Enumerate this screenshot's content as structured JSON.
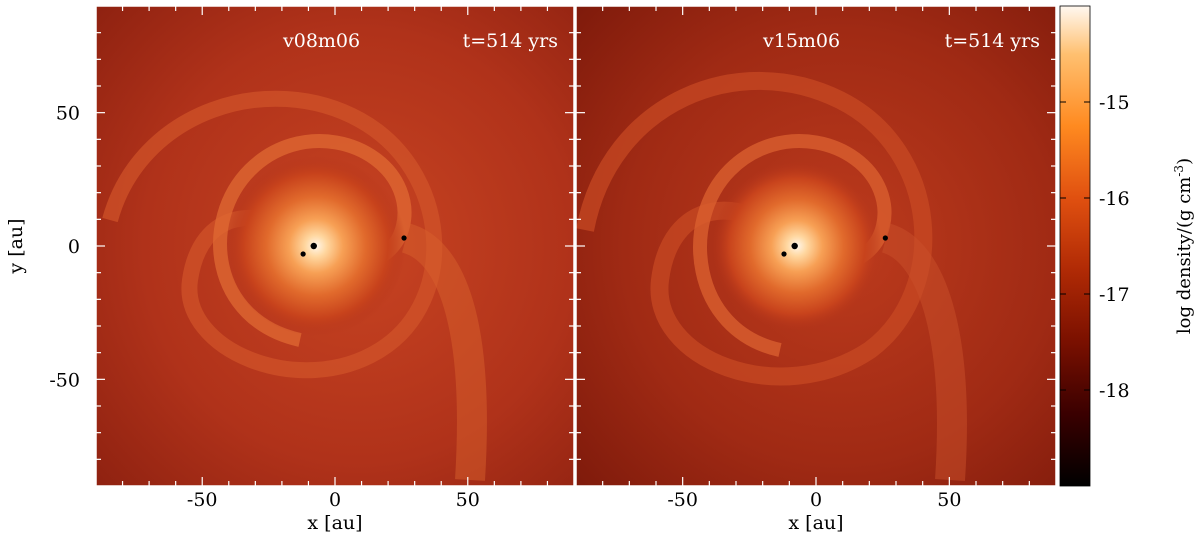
{
  "chart_data": [
    {
      "type": "heatmap",
      "title": "v08m06",
      "time_label": "t=514 yrs",
      "xlabel": "x [au]",
      "ylabel": "y [au]",
      "xlim": [
        -90,
        90
      ],
      "ylim": [
        -90,
        90
      ],
      "xticks": [
        -50,
        0,
        50
      ],
      "yticks": [
        -50,
        0,
        50
      ],
      "point_sources": [
        {
          "x": -8,
          "y": 0
        },
        {
          "x": -12,
          "y": -3
        },
        {
          "x": 26,
          "y": 3
        }
      ]
    },
    {
      "type": "heatmap",
      "title": "v15m06",
      "time_label": "t=514 yrs",
      "xlabel": "x [au]",
      "ylabel": "",
      "xlim": [
        -90,
        90
      ],
      "ylim": [
        -90,
        90
      ],
      "xticks": [
        -50,
        0,
        50
      ],
      "yticks": [
        -50,
        0,
        50
      ],
      "point_sources": [
        {
          "x": -8,
          "y": 0
        },
        {
          "x": -12,
          "y": -3
        },
        {
          "x": 26,
          "y": 3
        }
      ]
    }
  ],
  "colorbar": {
    "label": "log density/(g cm",
    "label_exponent": "-3",
    "label_close": ")",
    "range": [
      -19,
      -14
    ],
    "ticks": [
      -15,
      -16,
      -17,
      -18
    ],
    "colormap": [
      "#000000",
      "#3a0000",
      "#7a1000",
      "#b02a05",
      "#e05010",
      "#ff8a20",
      "#ffc070",
      "#fff8f0"
    ]
  }
}
